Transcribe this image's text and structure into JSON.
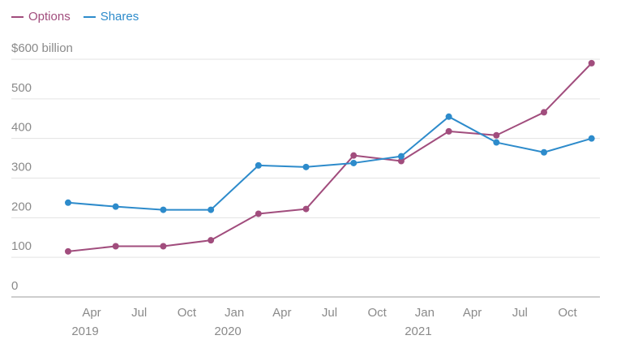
{
  "chart_data": {
    "type": "line",
    "legend": [
      {
        "name": "Options",
        "color": "#a14d7d"
      },
      {
        "name": "Shares",
        "color": "#2d8bcb"
      }
    ],
    "legend_position": "top-left",
    "y_unit_label": "$600 billion",
    "yticks": [
      {
        "value": 0,
        "label": "0"
      },
      {
        "value": 100,
        "label": "100"
      },
      {
        "value": 200,
        "label": "200"
      },
      {
        "value": 300,
        "label": "300"
      },
      {
        "value": 400,
        "label": "400"
      },
      {
        "value": 500,
        "label": "500"
      },
      {
        "value": 600,
        "label": "$600 billion"
      }
    ],
    "ylim": [
      0,
      600
    ],
    "grid": true,
    "x": [
      "2019-Q1",
      "2019-Q2",
      "2019-Q3",
      "2019-Q4",
      "2020-Q1",
      "2020-Q2",
      "2020-Q3",
      "2020-Q4",
      "2021-Q1",
      "2021-Q2",
      "2021-Q3",
      "2021-Q4"
    ],
    "xlim": [
      "2019-Q1",
      "2021-Q4"
    ],
    "xticks": [
      {
        "label": "Apr",
        "year": "2019"
      },
      {
        "label": "Jul",
        "year": ""
      },
      {
        "label": "Oct",
        "year": ""
      },
      {
        "label": "Jan",
        "year": "2020"
      },
      {
        "label": "Apr",
        "year": ""
      },
      {
        "label": "Jul",
        "year": ""
      },
      {
        "label": "Oct",
        "year": ""
      },
      {
        "label": "Jan",
        "year": "2021"
      },
      {
        "label": "Apr",
        "year": ""
      },
      {
        "label": "Jul",
        "year": ""
      },
      {
        "label": "Oct",
        "year": ""
      }
    ],
    "series": [
      {
        "name": "Options",
        "color": "#a14d7d",
        "values": [
          115,
          128,
          128,
          143,
          210,
          222,
          357,
          343,
          418,
          408,
          466,
          590
        ]
      },
      {
        "name": "Shares",
        "color": "#2d8bcb",
        "values": [
          238,
          228,
          220,
          220,
          332,
          328,
          338,
          355,
          455,
          390,
          365,
          400
        ]
      }
    ]
  }
}
